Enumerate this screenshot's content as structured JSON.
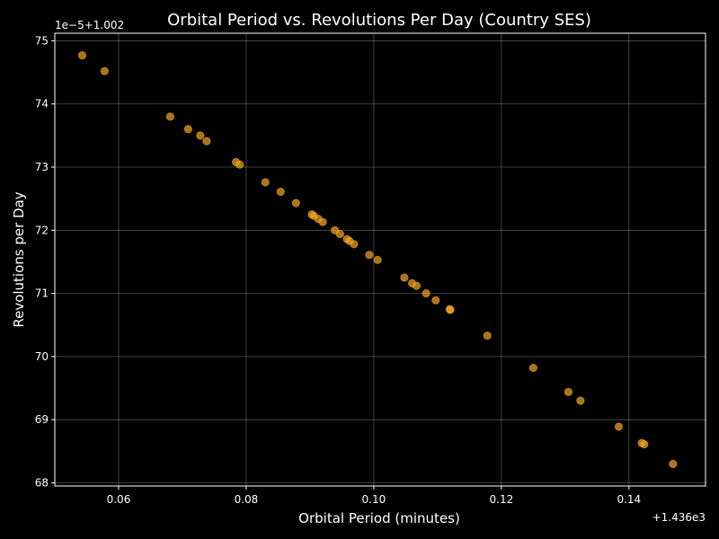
{
  "chart_data": {
    "type": "scatter",
    "title": "Orbital Period vs. Revolutions Per Day (Country SES)",
    "xlabel": "Orbital Period (minutes)",
    "ylabel": "Revolutions per Day",
    "x_offset_label": "+1.436e3",
    "y_offset_label": "1e−5+1.002",
    "xlim": [
      0.05,
      0.152
    ],
    "ylim": [
      67.95,
      75.12
    ],
    "xticks": [
      0.06,
      0.08,
      0.1,
      0.12,
      0.14
    ],
    "xtick_labels": [
      "0.06",
      "0.08",
      "0.10",
      "0.12",
      "0.14"
    ],
    "yticks": [
      68,
      69,
      70,
      71,
      72,
      73,
      74,
      75
    ],
    "ytick_labels": [
      "68",
      "69",
      "70",
      "71",
      "72",
      "73",
      "74",
      "75"
    ],
    "grid": true,
    "point_color": "#f5a623",
    "points": [
      {
        "x": 0.0543,
        "y": 74.77
      },
      {
        "x": 0.0578,
        "y": 74.52
      },
      {
        "x": 0.0681,
        "y": 73.8
      },
      {
        "x": 0.0709,
        "y": 73.6
      },
      {
        "x": 0.0728,
        "y": 73.5
      },
      {
        "x": 0.0738,
        "y": 73.41
      },
      {
        "x": 0.0784,
        "y": 73.08
      },
      {
        "x": 0.079,
        "y": 73.04
      },
      {
        "x": 0.083,
        "y": 72.76
      },
      {
        "x": 0.0854,
        "y": 72.61
      },
      {
        "x": 0.0878,
        "y": 72.43
      },
      {
        "x": 0.0903,
        "y": 72.25
      },
      {
        "x": 0.0906,
        "y": 72.23
      },
      {
        "x": 0.0913,
        "y": 72.18
      },
      {
        "x": 0.092,
        "y": 72.13
      },
      {
        "x": 0.0939,
        "y": 72.0
      },
      {
        "x": 0.0947,
        "y": 71.94
      },
      {
        "x": 0.0958,
        "y": 71.86
      },
      {
        "x": 0.0962,
        "y": 71.83
      },
      {
        "x": 0.0969,
        "y": 71.78
      },
      {
        "x": 0.0993,
        "y": 71.61
      },
      {
        "x": 0.1006,
        "y": 71.53
      },
      {
        "x": 0.1048,
        "y": 71.25
      },
      {
        "x": 0.106,
        "y": 71.16
      },
      {
        "x": 0.1067,
        "y": 71.12
      },
      {
        "x": 0.1082,
        "y": 71.0
      },
      {
        "x": 0.1097,
        "y": 70.89
      },
      {
        "x": 0.1119,
        "y": 70.75
      },
      {
        "x": 0.112,
        "y": 70.74
      },
      {
        "x": 0.1178,
        "y": 70.33
      },
      {
        "x": 0.125,
        "y": 69.82
      },
      {
        "x": 0.1305,
        "y": 69.44
      },
      {
        "x": 0.1324,
        "y": 69.3
      },
      {
        "x": 0.1384,
        "y": 68.89
      },
      {
        "x": 0.142,
        "y": 68.63
      },
      {
        "x": 0.1424,
        "y": 68.61
      },
      {
        "x": 0.1469,
        "y": 68.3
      }
    ]
  }
}
